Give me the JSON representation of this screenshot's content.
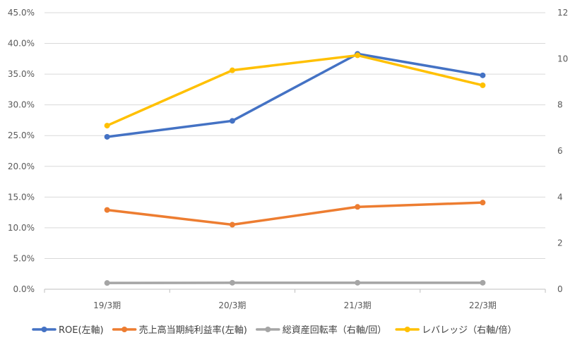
{
  "chart_data": {
    "type": "line",
    "categories": [
      "19/3期",
      "20/3期",
      "21/3期",
      "22/3期"
    ],
    "left_axis": {
      "ylim": [
        0,
        0.45
      ],
      "ticks": [
        "0.0%",
        "5.0%",
        "10.0%",
        "15.0%",
        "20.0%",
        "25.0%",
        "30.0%",
        "35.0%",
        "40.0%",
        "45.0%"
      ]
    },
    "right_axis": {
      "ylim": [
        0,
        12
      ],
      "ticks": [
        "0",
        "2",
        "4",
        "6",
        "8",
        "10",
        "12"
      ]
    },
    "grid": true,
    "legend_position": "bottom",
    "series": [
      {
        "name": "ROE(左軸)",
        "axis": "left",
        "color": "#4472C4",
        "values": [
          0.248,
          0.274,
          0.383,
          0.348
        ]
      },
      {
        "name": "売上高当期純利益率(左軸)",
        "axis": "left",
        "color": "#ED7D31",
        "values": [
          0.129,
          0.105,
          0.134,
          0.141
        ]
      },
      {
        "name": "総資産回転率（右軸/回）",
        "axis": "right",
        "color": "#A5A5A5",
        "values": [
          0.27,
          0.28,
          0.28,
          0.28
        ]
      },
      {
        "name": "レバレッジ（右軸/倍）",
        "axis": "right",
        "color": "#FFC000",
        "values": [
          7.1,
          9.5,
          10.15,
          8.85
        ]
      }
    ]
  }
}
